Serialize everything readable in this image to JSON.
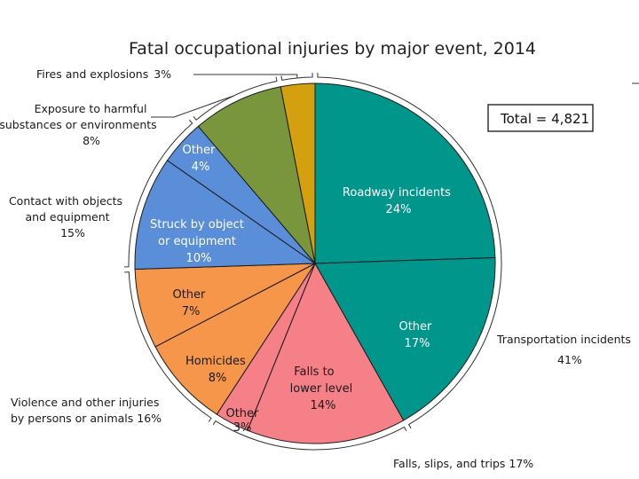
{
  "chart_data": {
    "type": "pie",
    "title": "Fatal occupational injuries by major event, 2014",
    "total_label": "Total = 4,821",
    "slices": [
      {
        "name": "Roadway incidents",
        "value": 24,
        "label": "24%",
        "color": "#00968c",
        "text": "light"
      },
      {
        "name": "Other",
        "value": 17,
        "label": "17%",
        "color": "#00968c",
        "text": "light"
      },
      {
        "name": "Falls to lower level",
        "value": 14,
        "label": "14%",
        "color": "#f58088",
        "text": "dark"
      },
      {
        "name": "Other",
        "value": 3,
        "label": "3%",
        "color": "#f58088",
        "text": "dark"
      },
      {
        "name": "Homicides",
        "value": 8,
        "label": "8%",
        "color": "#f5964a",
        "text": "dark"
      },
      {
        "name": "Other",
        "value": 7,
        "label": "7%",
        "color": "#f5964a",
        "text": "dark"
      },
      {
        "name": "Struck by object or equipment",
        "value": 10,
        "label": "10%",
        "color": "#5b8ed8",
        "text": "light"
      },
      {
        "name": "Other",
        "value": 4,
        "label": "4%",
        "color": "#5b8ed8",
        "text": "light"
      },
      {
        "name": "Exposure to harmful substances or environments",
        "value": 8,
        "label": "8%",
        "color": "#7a963c",
        "text": "light"
      },
      {
        "name": "Fires and explosions",
        "value": 3,
        "label": "3%",
        "color": "#d4a010",
        "text": "dark"
      }
    ],
    "groups": [
      {
        "name": "Transportation incidents",
        "value": "41%"
      },
      {
        "name": "Falls, slips, and trips",
        "value": "17%"
      },
      {
        "name": "Violence and other injuries by persons or animals",
        "value": "16%"
      },
      {
        "name": "Contact with objects and equipment",
        "value": "15%"
      }
    ]
  },
  "labels": {
    "inner": {
      "roadway": [
        "Roadway incidents",
        "24%"
      ],
      "trans_other": [
        "Other",
        "17%"
      ],
      "falls_lower": [
        "Falls to",
        "lower level",
        "14%"
      ],
      "falls_other": [
        "Other",
        "3%"
      ],
      "homicides": [
        "Homicides",
        "8%"
      ],
      "violence_other": [
        "Other",
        "7%"
      ],
      "struck": [
        "Struck by object",
        "or equipment",
        "10%"
      ],
      "contact_other": [
        "Other",
        "4%"
      ]
    },
    "outer": {
      "transportation": [
        "Transportation incidents",
        "41%"
      ],
      "falls": "Falls, slips, and trips 17%",
      "violence": [
        "Violence and other injuries",
        "by persons or animals  16%"
      ],
      "contact": [
        "Contact with objects",
        "and equipment",
        "15%"
      ],
      "exposure": [
        "Exposure to harmful",
        "substances or environments",
        "8%"
      ],
      "fires": [
        "Fires and explosions",
        "3%"
      ]
    }
  }
}
